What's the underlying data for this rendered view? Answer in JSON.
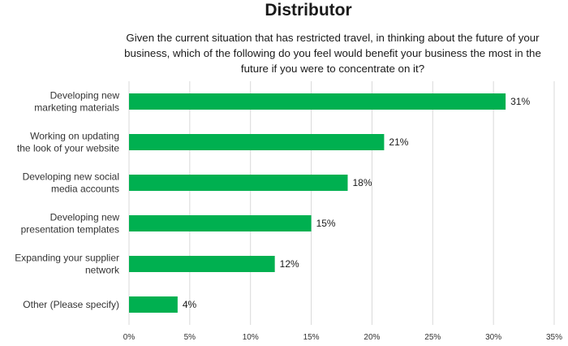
{
  "chart_data": {
    "type": "bar",
    "orientation": "horizontal",
    "title": "Distributor",
    "subtitle": "Given the current situation that has restricted travel, in thinking about the future of your business, which of the following do you feel would benefit your business the most in the future if you were to concentrate on it?",
    "categories": [
      [
        "Developing new",
        "marketing materials"
      ],
      [
        "Working on updating",
        "the look of your website"
      ],
      [
        "Developing new social",
        "media accounts"
      ],
      [
        "Developing new",
        "presentation templates"
      ],
      [
        "Expanding your supplier",
        "network"
      ],
      [
        "Other (Please specify)"
      ]
    ],
    "values": [
      31,
      21,
      18,
      15,
      12,
      4
    ],
    "value_labels": [
      "31%",
      "21%",
      "18%",
      "15%",
      "12%",
      "4%"
    ],
    "x_ticks": [
      "0%",
      "5%",
      "10%",
      "15%",
      "20%",
      "25%",
      "30%",
      "35%"
    ],
    "xlim": [
      0,
      35
    ],
    "grid": true,
    "bar_color": "#00b050",
    "grid_color": "#d9d9d9"
  }
}
